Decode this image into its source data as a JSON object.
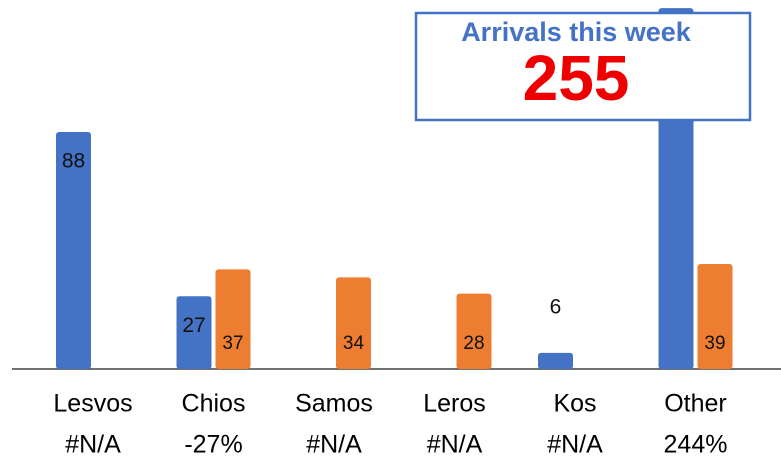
{
  "chart_data": {
    "type": "bar",
    "categories": [
      "Lesvos",
      "Chios",
      "Samos",
      "Leros",
      "Kos",
      "Other"
    ],
    "category_notes": [
      "#N/A",
      "-27%",
      "#N/A",
      "#N/A",
      "#N/A",
      "244%"
    ],
    "series": [
      {
        "color": "#4472c4",
        "values": [
          88,
          27,
          null,
          null,
          6,
          134
        ]
      },
      {
        "color": "#ed7d31",
        "values": [
          null,
          37,
          34,
          28,
          null,
          39
        ]
      }
    ],
    "ylim": [
      0,
      137
    ],
    "annotation": {
      "title": "Arrivals this week",
      "value": 255
    }
  }
}
